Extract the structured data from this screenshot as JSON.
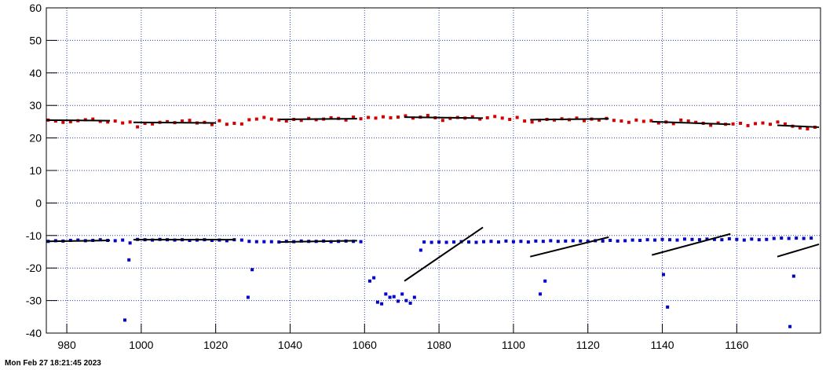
{
  "chart_data": {
    "type": "scatter",
    "xlim": [
      974.5,
      1182.5
    ],
    "ylim": [
      -40,
      60
    ],
    "xticks": [
      980,
      1000,
      1020,
      1040,
      1060,
      1080,
      1100,
      1120,
      1140,
      1160
    ],
    "yticks": [
      -40,
      -30,
      -20,
      -10,
      0,
      10,
      20,
      30,
      40,
      50,
      60
    ],
    "grid": true,
    "grid_color": "#2b3fb0",
    "series": [
      {
        "color": "#d40000",
        "x": [
          975,
          977,
          979,
          981,
          983,
          985,
          987,
          989,
          991,
          993,
          995,
          997,
          999,
          1001,
          1003,
          1005,
          1007,
          1009,
          1011,
          1013,
          1015,
          1017,
          1019,
          1021,
          1023,
          1025,
          1027,
          1029,
          1031,
          1033,
          1035,
          1037,
          1039,
          1041,
          1043,
          1045,
          1047,
          1049,
          1051,
          1053,
          1055,
          1057,
          1059,
          1061,
          1063,
          1065,
          1067,
          1069,
          1071,
          1073,
          1075,
          1077,
          1079,
          1081,
          1083,
          1085,
          1087,
          1089,
          1091,
          1093,
          1095,
          1097,
          1099,
          1101,
          1103,
          1105,
          1107,
          1109,
          1111,
          1113,
          1115,
          1117,
          1119,
          1121,
          1123,
          1125,
          1127,
          1129,
          1131,
          1133,
          1135,
          1137,
          1139,
          1141,
          1143,
          1145,
          1147,
          1149,
          1151,
          1153,
          1155,
          1157,
          1159,
          1161,
          1163,
          1165,
          1167,
          1169,
          1171,
          1173,
          1175,
          1177,
          1179,
          1181
        ],
        "values": [
          25.5,
          25.2,
          24.8,
          25,
          25.3,
          25.6,
          25.8,
          25.1,
          24.9,
          25.2,
          24.6,
          24.9,
          23.4,
          24.5,
          24.3,
          24.8,
          25,
          24.7,
          25.2,
          25.4,
          24.6,
          24.8,
          24.1,
          25.3,
          24.2,
          24.5,
          24.3,
          25.6,
          25.8,
          26.3,
          25.8,
          25.5,
          25.2,
          25.7,
          25.4,
          26,
          25.6,
          25.8,
          26.2,
          26,
          25.5,
          26.4,
          25.9,
          26.3,
          26.1,
          26.5,
          26.2,
          26.4,
          26.8,
          26.1,
          26.4,
          26.9,
          26.2,
          25.4,
          26,
          26.3,
          26.1,
          26.5,
          25.8,
          26.2,
          26.6,
          26.1,
          25.7,
          26.3,
          25.2,
          24.9,
          25.4,
          25.7,
          25.5,
          25.9,
          25.6,
          26.1,
          25.3,
          25.8,
          25.5,
          26,
          25.4,
          25.2,
          24.8,
          25.5,
          25.1,
          25.3,
          24.6,
          24.9,
          24.4,
          25.5,
          25.2,
          24.8,
          24.5,
          23.9,
          24.6,
          24.2,
          24.3,
          24.5,
          23.8,
          24.4,
          24.6,
          24.2,
          24.9,
          24.3,
          23.6,
          23.1,
          22.8,
          23.3
        ]
      },
      {
        "color": "#0000c8",
        "x": [
          975,
          977,
          979,
          981,
          983,
          985,
          987,
          989,
          991,
          993,
          995,
          997,
          999,
          1001,
          1003,
          1005,
          1007,
          1009,
          1011,
          1013,
          1015,
          1017,
          1019,
          1021,
          1023,
          1025,
          1027,
          1029,
          1031,
          1033,
          1035,
          1037,
          1039,
          1041,
          1043,
          1045,
          1047,
          1049,
          1051,
          1053,
          1055,
          1057,
          1059,
          1061.4,
          1062.5,
          1063.5,
          1064.6,
          1065.7,
          1066.8,
          1067.9,
          1069,
          1070.1,
          1071.2,
          1072.3,
          1073.4,
          1076,
          1078,
          1080,
          1082,
          1084,
          1086,
          1088,
          1090,
          1092,
          1094,
          1096,
          1098,
          1100,
          1102,
          1104,
          1106,
          1108,
          1110,
          1112,
          1114,
          1116,
          1118,
          1120,
          1122,
          1124,
          1126,
          1128,
          1130,
          1132,
          1134,
          1136,
          1138,
          1140,
          1142,
          1144,
          1146,
          1148,
          1150,
          1152,
          1154,
          1156,
          1158,
          1160,
          1162,
          1164,
          1166,
          1168,
          1170,
          1172,
          1174,
          1176,
          1178,
          1180,
          995.6,
          996.7,
          1028.7,
          1029.8,
          1075.1,
          1107.2,
          1108.5,
          1140.3,
          1141.4,
          1174.3,
          1175.3
        ],
        "values": [
          -11.8,
          -11.6,
          -11.7,
          -11.5,
          -11.4,
          -11.6,
          -11.5,
          -11.3,
          -11.5,
          -11.6,
          -11.4,
          -12.3,
          -11.2,
          -11.3,
          -11.4,
          -11.2,
          -11.3,
          -11.4,
          -11.3,
          -11.5,
          -11.4,
          -11.3,
          -11.5,
          -11.4,
          -11.6,
          -11.3,
          -11.4,
          -11.8,
          -11.9,
          -11.9,
          -11.9,
          -12,
          -11.8,
          -11.9,
          -11.7,
          -11.8,
          -11.8,
          -11.7,
          -11.9,
          -11.8,
          -11.7,
          -11.8,
          -11.9,
          -24,
          -23,
          -30.5,
          -31,
          -28,
          -29,
          -28.8,
          -30.2,
          -28,
          -30,
          -30.8,
          -29,
          -12,
          -12.1,
          -12,
          -12.1,
          -12,
          -11.9,
          -12,
          -12.1,
          -11.9,
          -11.8,
          -12,
          -11.7,
          -11.9,
          -11.8,
          -12,
          -11.7,
          -11.8,
          -11.6,
          -11.8,
          -11.7,
          -11.6,
          -11.7,
          -11.8,
          -11.6,
          -11.7,
          -11.5,
          -11.7,
          -11.6,
          -11.4,
          -11.5,
          -11.3,
          -11.4,
          -11.2,
          -11.3,
          -11.4,
          -11.1,
          -11.2,
          -11.3,
          -11.1,
          -11.2,
          -11.3,
          -11,
          -11.2,
          -11.4,
          -11.1,
          -11.3,
          -11.2,
          -10.9,
          -10.8,
          -10.9,
          -10.8,
          -10.9,
          -10.8,
          -36,
          -17.5,
          -29,
          -20.5,
          -14.5,
          -28,
          -24,
          -22,
          -32,
          -38,
          -22.5
        ]
      }
    ],
    "fits": [
      {
        "color": "#000000",
        "x": [
          974.5,
          991.6
        ],
        "values": [
          25.5,
          25.3
        ]
      },
      {
        "color": "#000000",
        "x": [
          997.9,
          1020.1
        ],
        "values": [
          24.8,
          24.6
        ]
      },
      {
        "color": "#000000",
        "x": [
          1037,
          1058
        ],
        "values": [
          25.7,
          25.9
        ]
      },
      {
        "color": "#000000",
        "x": [
          1070.7,
          1091.8
        ],
        "values": [
          26.4,
          26.1
        ]
      },
      {
        "color": "#000000",
        "x": [
          1104.5,
          1125.6
        ],
        "values": [
          25.6,
          25.9
        ]
      },
      {
        "color": "#000000",
        "x": [
          1137.2,
          1158.3
        ],
        "values": [
          25,
          24.2
        ]
      },
      {
        "color": "#000000",
        "x": [
          1170.9,
          1182.1
        ],
        "values": [
          23.9,
          23.3
        ]
      },
      {
        "color": "#000000",
        "x": [
          974.5,
          991.6
        ],
        "values": [
          -11.8,
          -11.5
        ]
      },
      {
        "color": "#000000",
        "x": [
          997.9,
          1025.3
        ],
        "values": [
          -11.3,
          -11.3
        ]
      },
      {
        "color": "#000000",
        "x": [
          1037,
          1058
        ],
        "values": [
          -12,
          -11.6
        ]
      },
      {
        "color": "#000000",
        "x": [
          1070.7,
          1091.8
        ],
        "values": [
          -24,
          -7.5
        ]
      },
      {
        "color": "#000000",
        "x": [
          1104.5,
          1125.6
        ],
        "values": [
          -16.5,
          -10.5
        ]
      },
      {
        "color": "#000000",
        "x": [
          1137.2,
          1158.3
        ],
        "values": [
          -16,
          -9.5
        ]
      },
      {
        "color": "#000000",
        "x": [
          1170.9,
          1182.1
        ],
        "values": [
          -16.5,
          -12.7
        ]
      }
    ],
    "footer": "Mon Feb 27 18:21:45 2023"
  }
}
